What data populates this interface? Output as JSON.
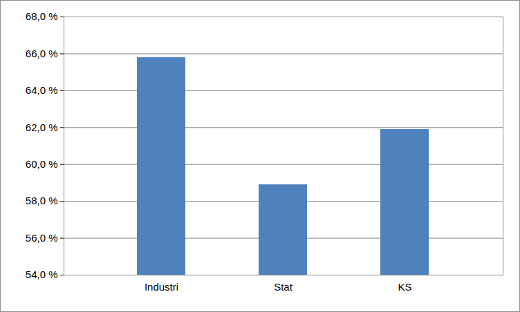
{
  "chart_data": {
    "type": "bar",
    "categories": [
      "Industri",
      "Stat",
      "KS"
    ],
    "values": [
      65.8,
      58.9,
      61.9
    ],
    "color": "#4f81bd",
    "ylim": [
      54,
      68
    ],
    "yticks": [
      {
        "value": 54,
        "label": "54,0 %"
      },
      {
        "value": 56,
        "label": "56,0 %"
      },
      {
        "value": 58,
        "label": "58,0 %"
      },
      {
        "value": 60,
        "label": "60,0 %"
      },
      {
        "value": 62,
        "label": "62,0 %"
      },
      {
        "value": 64,
        "label": "64,0 %"
      },
      {
        "value": 66,
        "label": "66,0 %"
      },
      {
        "value": 68,
        "label": "68,0 %"
      }
    ],
    "grid": true
  }
}
